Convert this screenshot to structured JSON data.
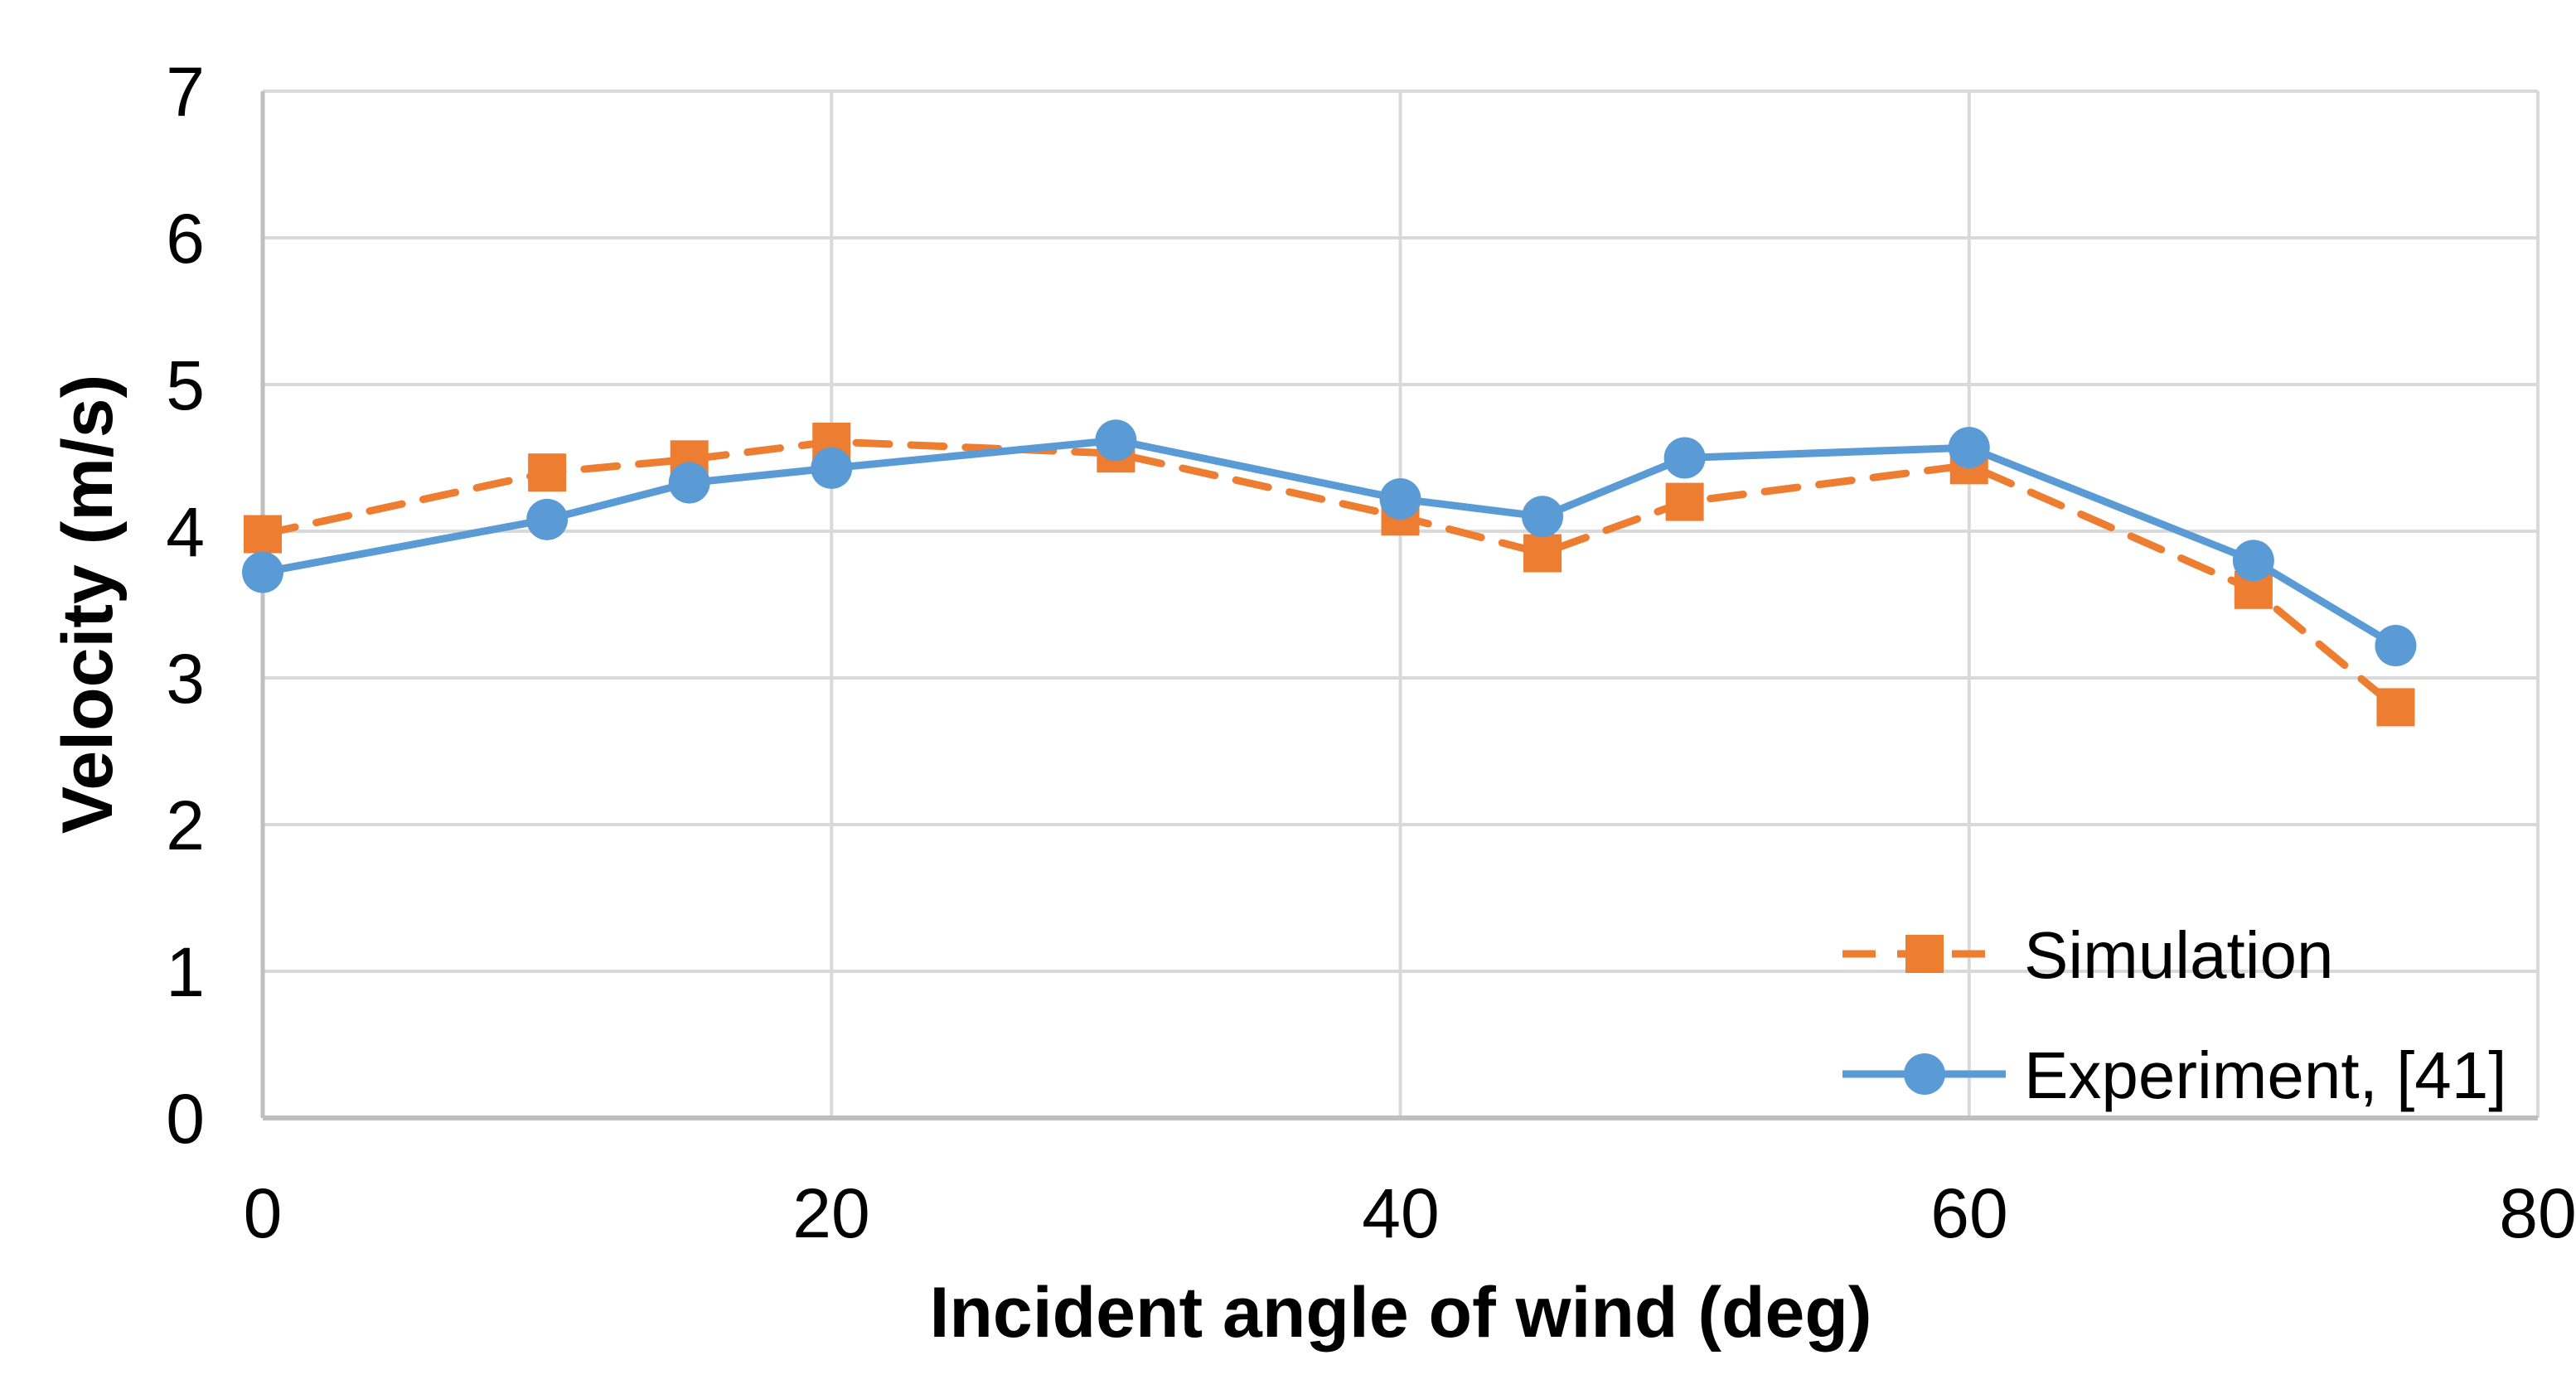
{
  "figure": {
    "background": "#ffffff"
  },
  "chart_data": {
    "type": "line",
    "title": "",
    "xlabel": "Incident angle of wind (deg)",
    "ylabel": "Velocity (m/s)",
    "x": [
      0,
      10,
      15,
      20,
      30,
      40,
      45,
      50,
      60,
      70,
      75
    ],
    "series": [
      {
        "name": "Simulation",
        "color": "#ED7D31",
        "line_style": "dashed",
        "marker": "square",
        "values": [
          3.98,
          4.4,
          4.49,
          4.61,
          4.53,
          4.1,
          3.85,
          4.2,
          4.45,
          3.6,
          2.8
        ]
      },
      {
        "name": "Experiment, [41]",
        "color": "#5B9BD5",
        "line_style": "solid",
        "marker": "circle",
        "values": [
          3.72,
          4.08,
          4.33,
          4.43,
          4.62,
          4.22,
          4.1,
          4.5,
          4.57,
          3.8,
          3.22
        ]
      }
    ],
    "xlim": [
      0,
      80
    ],
    "ylim": [
      0,
      7
    ],
    "xticks": [
      0,
      20,
      40,
      60,
      80
    ],
    "yticks": [
      0,
      1,
      2,
      3,
      4,
      5,
      6,
      7
    ],
    "grid": true,
    "legend_position": "inside-bottom-right",
    "colors": {
      "gridline": "#D9D9D9",
      "axis_line": "#BFBFBF",
      "text": "#000000"
    }
  }
}
